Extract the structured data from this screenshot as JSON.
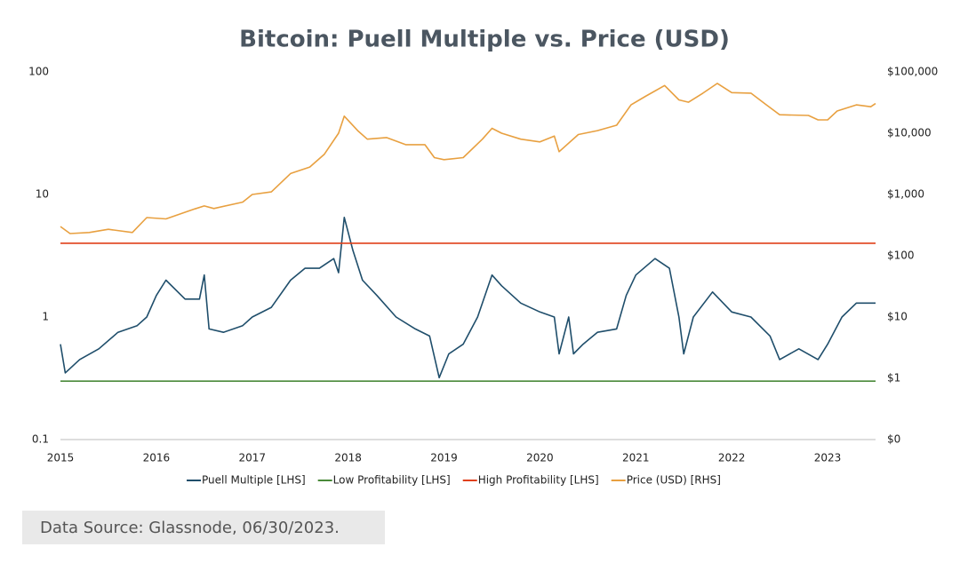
{
  "chart_data": {
    "type": "line",
    "title": "Bitcoin: Puell Multiple vs. Price (USD)",
    "source": "Data Source: Glassnode, 06/30/2023.",
    "log_scale": true,
    "xlim": [
      2015,
      2023.5
    ],
    "xticks": [
      2015,
      2016,
      2017,
      2018,
      2019,
      2020,
      2021,
      2022,
      2023
    ],
    "ylim": [
      0.1,
      100
    ],
    "yticks": [
      0.1,
      1,
      10,
      100
    ],
    "y2lim": [
      0.1,
      100000
    ],
    "y2ticks": [
      {
        "value": 0.1,
        "label": "$0"
      },
      {
        "value": 1,
        "label": "$1"
      },
      {
        "value": 10,
        "label": "$10"
      },
      {
        "value": 100,
        "label": "$100"
      },
      {
        "value": 1000,
        "label": "$1,000"
      },
      {
        "value": 10000,
        "label": "$10,000"
      },
      {
        "value": 100000,
        "label": "$100,000"
      }
    ],
    "series": [
      {
        "name": "Puell Multiple [LHS]",
        "color": "#1f4e6b",
        "axis": "y",
        "x": [
          2015.0,
          2015.05,
          2015.2,
          2015.4,
          2015.6,
          2015.8,
          2015.9,
          2016.0,
          2016.1,
          2016.3,
          2016.45,
          2016.5,
          2016.55,
          2016.7,
          2016.9,
          2017.0,
          2017.2,
          2017.4,
          2017.55,
          2017.7,
          2017.85,
          2017.9,
          2017.96,
          2018.05,
          2018.15,
          2018.3,
          2018.5,
          2018.7,
          2018.85,
          2018.95,
          2019.05,
          2019.2,
          2019.35,
          2019.5,
          2019.6,
          2019.8,
          2020.0,
          2020.15,
          2020.2,
          2020.3,
          2020.35,
          2020.45,
          2020.6,
          2020.8,
          2020.9,
          2021.0,
          2021.2,
          2021.35,
          2021.45,
          2021.5,
          2021.6,
          2021.8,
          2022.0,
          2022.2,
          2022.4,
          2022.5,
          2022.7,
          2022.9,
          2023.0,
          2023.15,
          2023.3,
          2023.5
        ],
        "values": [
          0.6,
          0.35,
          0.45,
          0.55,
          0.75,
          0.85,
          1.0,
          1.5,
          2.0,
          1.4,
          1.4,
          2.2,
          0.8,
          0.75,
          0.85,
          1.0,
          1.2,
          2.0,
          2.5,
          2.5,
          3.0,
          2.3,
          6.5,
          3.5,
          2.0,
          1.5,
          1.0,
          0.8,
          0.7,
          0.32,
          0.5,
          0.6,
          1.0,
          2.2,
          1.8,
          1.3,
          1.1,
          1.0,
          0.5,
          1.0,
          0.5,
          0.6,
          0.75,
          0.8,
          1.5,
          2.2,
          3.0,
          2.5,
          1.0,
          0.5,
          1.0,
          1.6,
          1.1,
          1.0,
          0.7,
          0.45,
          0.55,
          0.45,
          0.6,
          1.0,
          1.3,
          1.3
        ]
      },
      {
        "name": "Low Profitability [LHS]",
        "color": "#4a8a3a",
        "axis": "y",
        "x": [
          2015,
          2023.5
        ],
        "values": [
          0.3,
          0.3
        ]
      },
      {
        "name": "High Profitability [LHS]",
        "color": "#e0401a",
        "axis": "y",
        "x": [
          2015,
          2023.5
        ],
        "values": [
          4,
          4
        ]
      },
      {
        "name": "Price (USD) [RHS]",
        "color": "#e8a040",
        "axis": "y2",
        "x": [
          2015.0,
          2015.1,
          2015.3,
          2015.5,
          2015.75,
          2015.9,
          2016.1,
          2016.4,
          2016.5,
          2016.6,
          2016.9,
          2017.0,
          2017.2,
          2017.4,
          2017.6,
          2017.75,
          2017.9,
          2017.96,
          2018.1,
          2018.2,
          2018.4,
          2018.6,
          2018.8,
          2018.9,
          2019.0,
          2019.2,
          2019.4,
          2019.5,
          2019.6,
          2019.8,
          2020.0,
          2020.15,
          2020.2,
          2020.4,
          2020.6,
          2020.8,
          2020.95,
          2021.1,
          2021.3,
          2021.45,
          2021.55,
          2021.7,
          2021.85,
          2022.0,
          2022.2,
          2022.35,
          2022.5,
          2022.8,
          2022.9,
          2023.0,
          2023.1,
          2023.3,
          2023.45,
          2023.5
        ],
        "values": [
          300,
          230,
          240,
          270,
          240,
          420,
          400,
          580,
          650,
          590,
          750,
          1000,
          1100,
          2200,
          2800,
          4500,
          10000,
          19000,
          11000,
          8000,
          8500,
          6500,
          6500,
          4000,
          3700,
          4000,
          8000,
          12000,
          10000,
          8000,
          7200,
          9000,
          5000,
          9500,
          11000,
          13500,
          29000,
          40000,
          60000,
          35000,
          32000,
          45000,
          65000,
          46000,
          45000,
          30000,
          20000,
          19500,
          16500,
          16500,
          23000,
          29000,
          27000,
          30500
        ]
      }
    ]
  }
}
